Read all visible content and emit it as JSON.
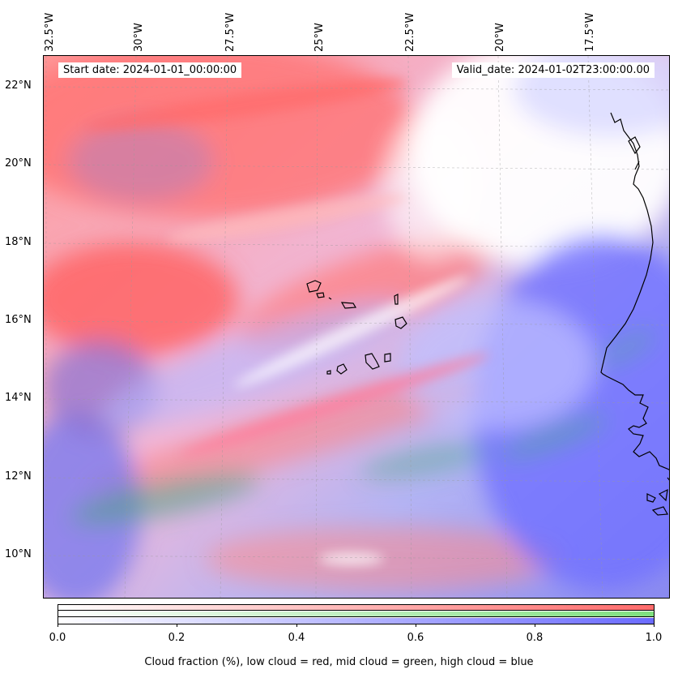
{
  "map": {
    "lon_labels": [
      "32.5°W",
      "30°W",
      "27.5°W",
      "25°W",
      "22.5°W",
      "20°W",
      "17.5°W"
    ],
    "lat_labels": [
      "22°N",
      "20°N",
      "18°N",
      "16°N",
      "14°N",
      "12°N",
      "10°N"
    ],
    "start_date": "Start date: 2024-01-01_00:00:00",
    "valid_date": "Valid_date: 2024-01-02T23:00:00.00",
    "colors": {
      "low_cloud": "#ff6b6b",
      "mid_cloud": "#7fe07f",
      "high_cloud": "#6b6bff",
      "coastline": "#000000"
    }
  },
  "colorbar": {
    "ticks": [
      "0.0",
      "0.2",
      "0.4",
      "0.6",
      "0.8",
      "1.0"
    ],
    "caption": "Cloud fraction (%), low cloud = red, mid cloud = green, high cloud = blue"
  }
}
